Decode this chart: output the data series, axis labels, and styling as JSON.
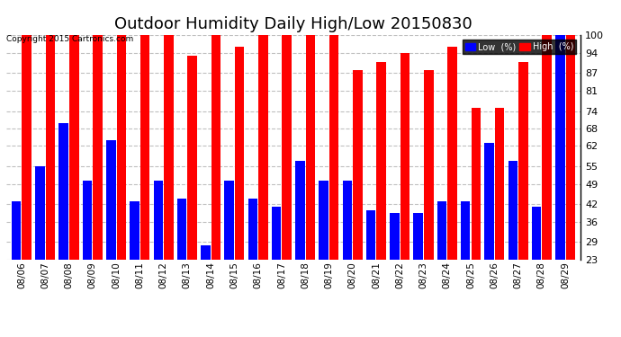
{
  "title": "Outdoor Humidity Daily High/Low 20150830",
  "copyright": "Copyright 2015 Cartronics.com",
  "categories": [
    "08/06",
    "08/07",
    "08/08",
    "08/09",
    "08/10",
    "08/11",
    "08/12",
    "08/13",
    "08/14",
    "08/15",
    "08/16",
    "08/17",
    "08/18",
    "08/19",
    "08/20",
    "08/21",
    "08/22",
    "08/23",
    "08/24",
    "08/25",
    "08/26",
    "08/27",
    "08/28",
    "08/29"
  ],
  "high_values": [
    100,
    100,
    100,
    100,
    100,
    100,
    100,
    93,
    100,
    96,
    100,
    100,
    100,
    100,
    88,
    91,
    94,
    88,
    96,
    75,
    75,
    91,
    100,
    100
  ],
  "low_values": [
    43,
    55,
    70,
    50,
    64,
    43,
    50,
    44,
    28,
    50,
    44,
    41,
    57,
    50,
    50,
    40,
    39,
    39,
    43,
    43,
    63,
    57,
    41,
    100
  ],
  "high_color": "#ff0000",
  "low_color": "#0000ff",
  "bg_color": "#ffffff",
  "grid_color": "#c0c0c0",
  "yticks": [
    23,
    29,
    36,
    42,
    49,
    55,
    62,
    68,
    74,
    81,
    87,
    94,
    100
  ],
  "ymin": 23,
  "ymax": 100,
  "title_fontsize": 13,
  "legend_low_label": "Low  (%)",
  "legend_high_label": "High  (%)"
}
